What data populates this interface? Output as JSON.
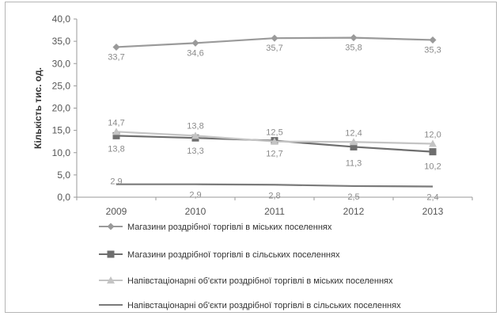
{
  "chart_data": {
    "type": "line",
    "ylabel": "Кількість тис. од.",
    "ylim": [
      0,
      40
    ],
    "yticks": [
      "0,0",
      "5,0",
      "10,0",
      "15,0",
      "20,0",
      "25,0",
      "30,0",
      "35,0",
      "40,0"
    ],
    "categories": [
      "2009",
      "2010",
      "2011",
      "2012",
      "2013"
    ],
    "grid": false,
    "legend_position": "bottom",
    "series": [
      {
        "name": "Магазини роздрібної торгівлі в міських поселеннях",
        "values": [
          33.7,
          34.6,
          35.7,
          35.8,
          35.3
        ],
        "labels": [
          "33,7",
          "34,6",
          "35,7",
          "35,8",
          "35,3"
        ],
        "color": "#9a9a9a",
        "marker": "diamond"
      },
      {
        "name": "Магазини роздрібної торгівлі в сільських поселеннях",
        "values": [
          13.8,
          13.3,
          12.7,
          11.3,
          10.2
        ],
        "labels": [
          "13,8",
          "13,3",
          "12,7",
          "11,3",
          "10,2"
        ],
        "color": "#6e6e6e",
        "marker": "square"
      },
      {
        "name": "Напівстаціонарні об'єкти роздрібної торгівлі в міських поселеннях",
        "values": [
          14.7,
          13.8,
          12.5,
          12.4,
          12.0
        ],
        "labels": [
          "14,7",
          "13,8",
          "12,5",
          "12,4",
          "12,0"
        ],
        "color": "#c4c4c4",
        "marker": "triangle"
      },
      {
        "name": "Напівстаціонарні об'єкти роздрібної торгівлі в сільських поселеннях",
        "values": [
          2.9,
          2.9,
          2.8,
          2.5,
          2.4
        ],
        "labels": [
          "2,9",
          "2,9",
          "2,8",
          "2,5",
          "2,4"
        ],
        "color": "#7a7a7a",
        "marker": "none"
      }
    ]
  }
}
